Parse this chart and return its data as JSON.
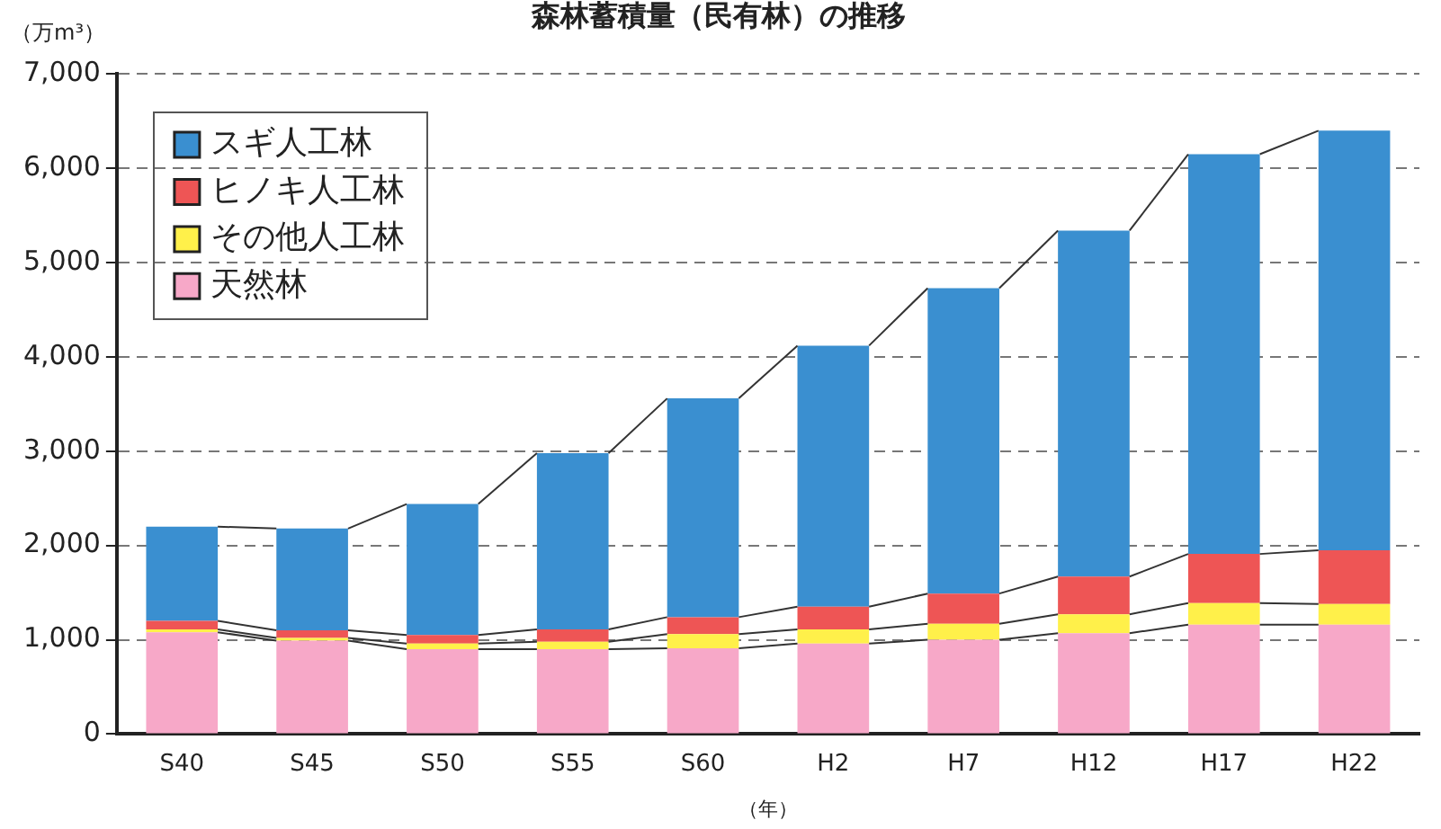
{
  "chart_data": {
    "type": "bar",
    "title": "森林蓄積量（民有林）の推移",
    "xlabel": "（年）",
    "ylabel": "（万m³）",
    "categories": [
      "S40",
      "S45",
      "S50",
      "S55",
      "S60",
      "H2",
      "H7",
      "H12",
      "H17",
      "H22"
    ],
    "stacked": true,
    "series": [
      {
        "name": "天然林",
        "color": "#f7a8c8",
        "values": [
          1080,
          990,
          900,
          900,
          910,
          960,
          1000,
          1070,
          1160,
          1160
        ]
      },
      {
        "name": "その他人工林",
        "color": "#fff04a",
        "values": [
          30,
          30,
          60,
          80,
          150,
          150,
          170,
          200,
          230,
          220
        ]
      },
      {
        "name": "ヒノキ人工林",
        "color": "#ee5555",
        "values": [
          90,
          80,
          90,
          130,
          180,
          240,
          320,
          400,
          520,
          570
        ]
      },
      {
        "name": "スギ人工林",
        "color": "#3a8fd0",
        "values": [
          1000,
          1080,
          1390,
          1870,
          2320,
          2770,
          3240,
          3670,
          4240,
          4450
        ]
      }
    ],
    "ylim": [
      0,
      7000
    ],
    "yticks": [
      {
        "value": 0,
        "label": "0"
      },
      {
        "value": 1000,
        "label": "1,000"
      },
      {
        "value": 2000,
        "label": "2,000"
      },
      {
        "value": 3000,
        "label": "3,000"
      },
      {
        "value": 4000,
        "label": "4,000"
      },
      {
        "value": 5000,
        "label": "5,000"
      },
      {
        "value": 6000,
        "label": "6,000"
      },
      {
        "value": 7000,
        "label": "7,000"
      }
    ],
    "grid": "y",
    "legend": "top left"
  }
}
